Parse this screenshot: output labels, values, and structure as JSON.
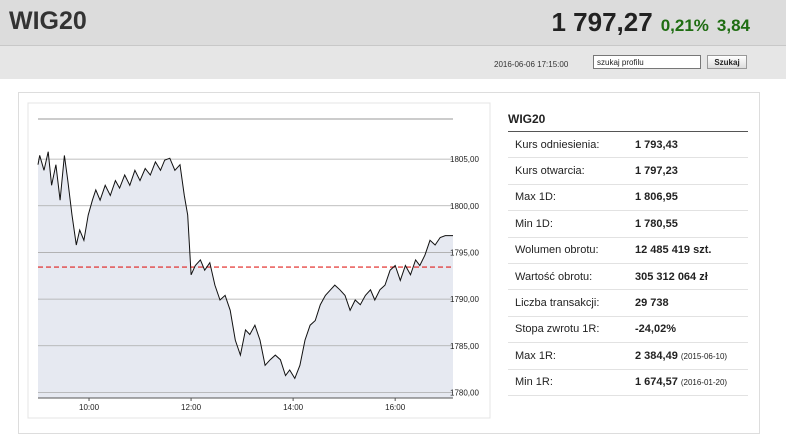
{
  "header": {
    "title": "WIG20",
    "price": "1 797,27",
    "change_pct": "0,21%",
    "change_abs": "3,84",
    "datetime": "2016-06-06 17:15:00",
    "search_value": "szukaj profilu",
    "search_button": "Szukaj"
  },
  "chart_data": {
    "type": "line",
    "color": "#111111",
    "fill": "#e6e9f1",
    "x": [
      "09:00",
      "09:02",
      "09:07",
      "09:12",
      "09:16",
      "09:21",
      "09:26",
      "09:31",
      "09:35",
      "09:40",
      "09:45",
      "09:49",
      "09:54",
      "09:59",
      "10:04",
      "10:08",
      "10:13",
      "10:19",
      "10:25",
      "10:31",
      "10:36",
      "10:42",
      "10:48",
      "10:54",
      "11:00",
      "11:06",
      "11:12",
      "11:18",
      "11:24",
      "11:29",
      "11:35",
      "11:41",
      "11:47",
      "11:52",
      "11:56",
      "12:00",
      "12:05",
      "12:11",
      "12:16",
      "12:22",
      "12:28",
      "12:34",
      "12:40",
      "12:46",
      "12:52",
      "12:58",
      "13:04",
      "13:09",
      "13:15",
      "13:21",
      "13:27",
      "13:33",
      "13:39",
      "13:45",
      "13:51",
      "13:56",
      "14:02",
      "14:08",
      "14:14",
      "14:20",
      "14:26",
      "14:32",
      "14:38",
      "14:44",
      "14:49",
      "14:55",
      "15:01",
      "15:07",
      "15:13",
      "15:19",
      "15:25",
      "15:31",
      "15:36",
      "15:42",
      "15:48",
      "15:54",
      "16:00",
      "16:06",
      "16:12",
      "16:18",
      "16:24",
      "16:29",
      "16:35",
      "16:41",
      "16:47",
      "16:53",
      "16:59",
      "17:08"
    ],
    "values": [
      1804.4,
      1805.4,
      1803.8,
      1805.8,
      1802.2,
      1804.4,
      1800.6,
      1805.4,
      1802.7,
      1799,
      1795.8,
      1797.4,
      1796.3,
      1799,
      1800.6,
      1801.7,
      1800.6,
      1802.2,
      1801.1,
      1802.7,
      1801.9,
      1803.3,
      1802.2,
      1803.8,
      1802.7,
      1804,
      1803.3,
      1804.7,
      1803.8,
      1804.9,
      1805.1,
      1803.8,
      1804.4,
      1801.1,
      1799,
      1792.6,
      1793.6,
      1794.2,
      1793.1,
      1793.9,
      1791.5,
      1789.9,
      1790.4,
      1788.8,
      1785.6,
      1784,
      1786.7,
      1786.2,
      1787.2,
      1785.6,
      1782.9,
      1783.5,
      1784,
      1783.5,
      1781.8,
      1782.4,
      1781.5,
      1782.9,
      1785.6,
      1787.2,
      1787.7,
      1789.4,
      1790.4,
      1791,
      1791.5,
      1791,
      1790.4,
      1788.8,
      1789.9,
      1789.4,
      1790.4,
      1791,
      1789.9,
      1791,
      1791.5,
      1793.1,
      1793.6,
      1792,
      1793.6,
      1792.6,
      1794.2,
      1793.6,
      1794.7,
      1796.3,
      1795.8,
      1796.6,
      1796.8,
      1796.8
    ],
    "xlim": [
      "09:00",
      "17:08"
    ],
    "xticks": [
      "10:00",
      "12:00",
      "14:00",
      "16:00"
    ],
    "ylim": [
      1779.4,
      1809.3
    ],
    "yticks": [
      {
        "value": 1780,
        "label": "1780,00"
      },
      {
        "value": 1785,
        "label": "1785,00"
      },
      {
        "value": 1790,
        "label": "1790,00"
      },
      {
        "value": 1795,
        "label": "1795,00"
      },
      {
        "value": 1800,
        "label": "1800,00"
      },
      {
        "value": 1805,
        "label": "1805,00"
      }
    ],
    "grid": true,
    "reference_line": 1793.43,
    "reference_color": "#e0201e"
  },
  "table": {
    "title": "WIG20",
    "rows": [
      {
        "label": "Kurs odniesienia:",
        "value": "1 793,43"
      },
      {
        "label": "Kurs otwarcia:",
        "value": "1 797,23"
      },
      {
        "label": "Max 1D:",
        "value": "1 806,95"
      },
      {
        "label": "Min 1D:",
        "value": "1 780,55"
      },
      {
        "label": "Wolumen obrotu:",
        "value": "12 485 419 szt."
      },
      {
        "label": "Wartość obrotu:",
        "value": "305 312 064 zł"
      },
      {
        "label": "Liczba transakcji:",
        "value": "29 738"
      },
      {
        "label": "Stopa zwrotu 1R:",
        "value": "-24,02%"
      },
      {
        "label": "Max 1R:",
        "value": "2 384,49",
        "note": "(2015-06-10)"
      },
      {
        "label": "Min 1R:",
        "value": "1 674,57",
        "note": "(2016-01-20)"
      }
    ]
  }
}
